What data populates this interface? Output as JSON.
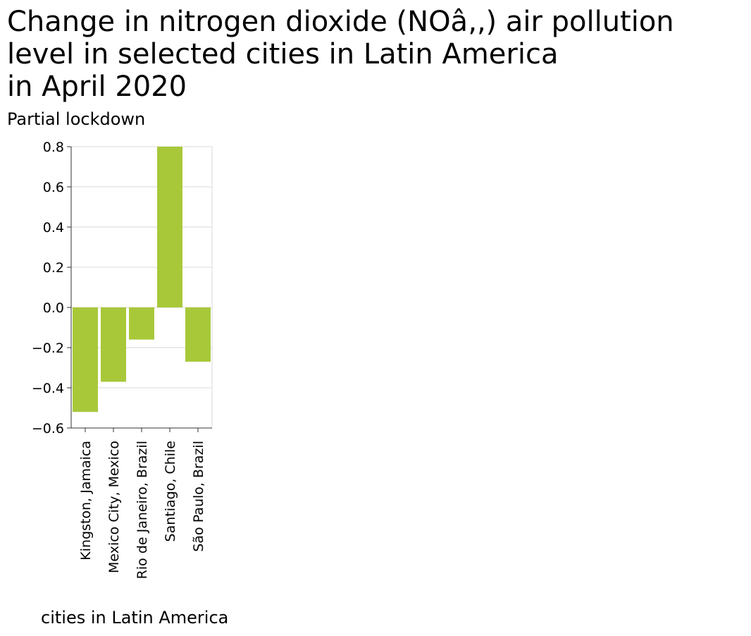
{
  "chart_data": {
    "type": "bar",
    "title_lines": [
      "Change in nitrogen dioxide (NOâ‚‚) air pollution",
      "level in selected cities in Latin America",
      "in April 2020"
    ],
    "ylabel": "Partial lockdown",
    "xlabel": "cities in Latin America",
    "categories": [
      "Kingston, Jamaica",
      "Mexico City, Mexico",
      "Rio de Janeiro, Brazil",
      "Santiago, Chile",
      "São Paulo, Brazil"
    ],
    "values": [
      -0.52,
      -0.37,
      -0.16,
      0.8,
      -0.27
    ],
    "ylim": [
      -0.6,
      0.8
    ],
    "yticks": [
      "−0.6",
      "−0.4",
      "−0.2",
      "0.0",
      "0.2",
      "0.4",
      "0.6",
      "0.8"
    ],
    "ytick_values": [
      -0.6,
      -0.4,
      -0.2,
      0.0,
      0.2,
      0.4,
      0.6,
      0.8
    ],
    "grid": true,
    "bar_color": "#a8c83a"
  }
}
